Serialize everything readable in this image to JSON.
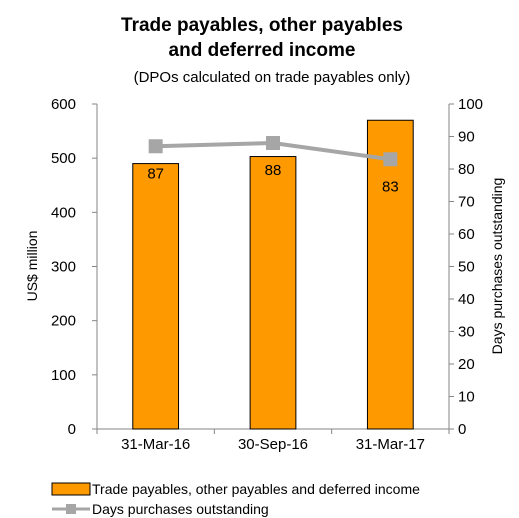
{
  "chart_data": {
    "type": "bar",
    "title": "Trade payables, other payables and deferred income",
    "title_lines": [
      "Trade payables, other payables",
      "and deferred income"
    ],
    "subtitle": "(DPOs calculated on trade payables only)",
    "categories": [
      "31-Mar-16",
      "30-Sep-16",
      "31-Mar-17"
    ],
    "ylabel": "US$ million",
    "y2label": "Days purchases outstanding",
    "ylim": [
      0,
      600
    ],
    "y2lim": [
      0,
      100
    ],
    "yticks": [
      "0",
      "100",
      "200",
      "300",
      "400",
      "500",
      "600"
    ],
    "y2ticks": [
      "0",
      "10",
      "20",
      "30",
      "40",
      "50",
      "60",
      "70",
      "80",
      "90",
      "100"
    ],
    "series": [
      {
        "name": "Trade payables, other payables and deferred income",
        "type": "bar",
        "axis": "left",
        "values": [
          490,
          503,
          570
        ],
        "color": "#FF9900"
      },
      {
        "name": "Days purchases outstanding",
        "type": "line",
        "axis": "right",
        "values": [
          87,
          88,
          83
        ],
        "data_labels": [
          "87",
          "88",
          "83"
        ],
        "color": "#A6A6A6"
      }
    ],
    "grid": false,
    "legend_position": "bottom"
  }
}
